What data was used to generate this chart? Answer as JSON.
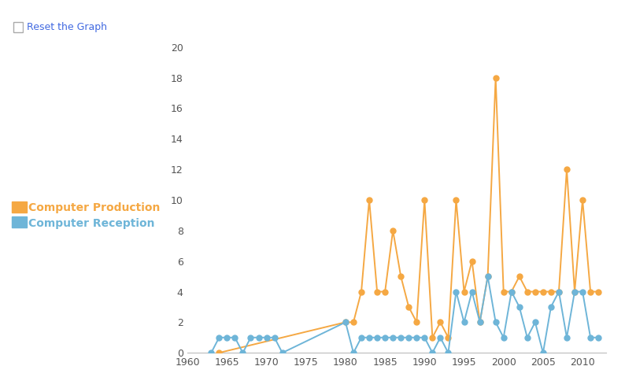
{
  "production_years": [
    1964,
    1980,
    1981,
    1982,
    1983,
    1984,
    1985,
    1986,
    1987,
    1988,
    1989,
    1990,
    1991,
    1992,
    1993,
    1994,
    1995,
    1996,
    1997,
    1998,
    1999,
    2000,
    2001,
    2002,
    2003,
    2004,
    2005,
    2006,
    2007,
    2008,
    2009,
    2010,
    2011,
    2012
  ],
  "production_values": [
    0,
    2,
    2,
    4,
    10,
    4,
    4,
    8,
    5,
    3,
    2,
    10,
    1,
    2,
    1,
    10,
    4,
    6,
    2,
    5,
    18,
    4,
    4,
    5,
    4,
    4,
    4,
    4,
    4,
    12,
    4,
    10,
    4,
    4
  ],
  "reception_years": [
    1963,
    1964,
    1965,
    1966,
    1967,
    1968,
    1969,
    1970,
    1971,
    1972,
    1980,
    1981,
    1982,
    1983,
    1984,
    1985,
    1986,
    1987,
    1988,
    1989,
    1990,
    1991,
    1992,
    1993,
    1994,
    1995,
    1996,
    1997,
    1998,
    1999,
    2000,
    2001,
    2002,
    2003,
    2004,
    2005,
    2006,
    2007,
    2008,
    2009,
    2010,
    2011,
    2012
  ],
  "reception_values": [
    0,
    1,
    1,
    1,
    0,
    1,
    1,
    1,
    1,
    0,
    2,
    0,
    1,
    1,
    1,
    1,
    1,
    1,
    1,
    1,
    1,
    0,
    1,
    0,
    4,
    2,
    4,
    2,
    5,
    2,
    1,
    4,
    3,
    1,
    2,
    0,
    3,
    4,
    1,
    4,
    4,
    1,
    1
  ],
  "production_color": "#f5a843",
  "reception_color": "#6eb5d8",
  "background_color": "#ffffff",
  "ylim": [
    0,
    20
  ],
  "xlim": [
    1960,
    2013
  ],
  "yticks": [
    0,
    2,
    4,
    6,
    8,
    10,
    12,
    14,
    16,
    18,
    20
  ],
  "xticks": [
    1960,
    1965,
    1970,
    1975,
    1980,
    1985,
    1990,
    1995,
    2000,
    2005,
    2010
  ],
  "legend_production": "Computer Production",
  "legend_reception": "Computer Reception",
  "marker_size": 5,
  "line_width": 1.4,
  "reset_text": "Reset the Graph",
  "reset_color": "#4169e1",
  "tick_fontsize": 9,
  "legend_fontsize": 10
}
